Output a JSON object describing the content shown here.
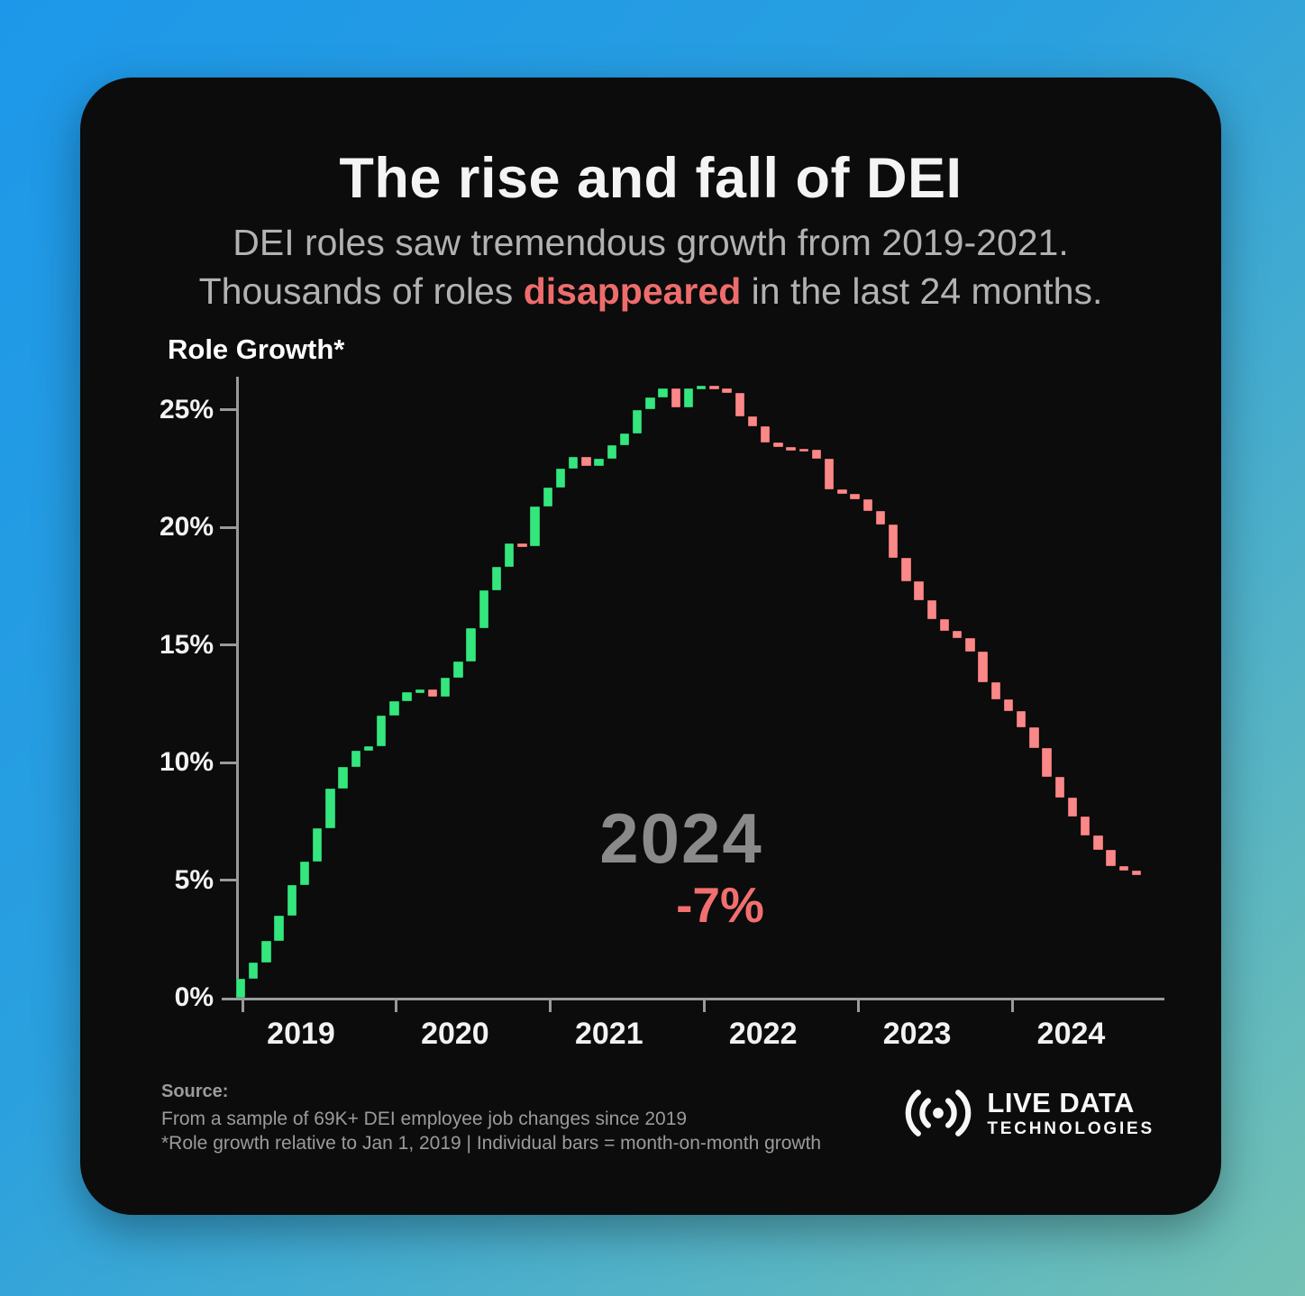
{
  "header": {
    "title": "The rise and fall of DEI",
    "subtitle_line1": "DEI roles saw tremendous growth from 2019-2021.",
    "subtitle_line2_prefix": "Thousands of roles ",
    "subtitle_line2_highlight": "disappeared",
    "subtitle_line2_suffix": " in the last 24 months."
  },
  "chart_data": {
    "type": "bar",
    "subtype": "waterfall",
    "axis_title": "Role Growth*",
    "ylabel": "Role Growth*",
    "xlabel": "",
    "ylim": [
      0,
      26.5
    ],
    "grid": false,
    "y_tick_values": [
      0,
      5,
      10,
      15,
      20,
      25
    ],
    "y_tick_labels": [
      "0%",
      "5%",
      "10%",
      "15%",
      "20%",
      "25%"
    ],
    "x_tick_labels": [
      "2019",
      "2020",
      "2021",
      "2022",
      "2023",
      "2024"
    ],
    "months": [
      "Jan 2019",
      "Feb 2019",
      "Mar 2019",
      "Apr 2019",
      "May 2019",
      "Jun 2019",
      "Jul 2019",
      "Aug 2019",
      "Sep 2019",
      "Oct 2019",
      "Nov 2019",
      "Dec 2019",
      "Jan 2020",
      "Feb 2020",
      "Mar 2020",
      "Apr 2020",
      "May 2020",
      "Jun 2020",
      "Jul 2020",
      "Aug 2020",
      "Sep 2020",
      "Oct 2020",
      "Nov 2020",
      "Dec 2020",
      "Jan 2021",
      "Feb 2021",
      "Mar 2021",
      "Apr 2021",
      "May 2021",
      "Jun 2021",
      "Jul 2021",
      "Aug 2021",
      "Sep 2021",
      "Oct 2021",
      "Nov 2021",
      "Dec 2021",
      "Jan 2022",
      "Feb 2022",
      "Mar 2022",
      "Apr 2022",
      "May 2022",
      "Jun 2022",
      "Jul 2022",
      "Aug 2022",
      "Sep 2022",
      "Oct 2022",
      "Nov 2022",
      "Dec 2022",
      "Jan 2023",
      "Feb 2023",
      "Mar 2023",
      "Apr 2023",
      "May 2023",
      "Jun 2023",
      "Jul 2023",
      "Aug 2023",
      "Sep 2023",
      "Oct 2023",
      "Nov 2023",
      "Dec 2023",
      "Jan 2024",
      "Feb 2024",
      "Mar 2024",
      "Apr 2024",
      "May 2024",
      "Jun 2024",
      "Jul 2024",
      "Aug 2024",
      "Sep 2024",
      "Oct 2024",
      "Nov 2024"
    ],
    "cumulative_role_growth_pct": [
      0.8,
      1.5,
      2.4,
      3.5,
      4.8,
      5.8,
      7.2,
      8.9,
      9.8,
      10.5,
      10.7,
      12.0,
      12.6,
      13.0,
      13.1,
      12.8,
      13.6,
      14.3,
      15.7,
      17.3,
      18.3,
      19.3,
      19.2,
      20.9,
      21.7,
      22.5,
      23.0,
      22.6,
      22.9,
      23.5,
      24.0,
      25.0,
      25.5,
      25.9,
      25.1,
      25.9,
      26.0,
      25.9,
      25.7,
      24.7,
      24.3,
      23.6,
      23.4,
      23.35,
      23.3,
      22.9,
      21.6,
      21.4,
      21.2,
      20.7,
      20.1,
      18.7,
      17.7,
      16.9,
      16.1,
      15.6,
      15.3,
      14.7,
      13.4,
      12.7,
      12.2,
      11.5,
      10.6,
      9.4,
      8.5,
      7.7,
      6.9,
      6.3,
      5.6,
      5.4,
      5.2
    ],
    "bar_colors": {
      "positive": "#35e67e",
      "negative": "#f98989"
    },
    "legend_position": "none",
    "annotation": {
      "year": "2024",
      "delta": "-7%"
    }
  },
  "footer": {
    "source_label": "Source:",
    "source_line1": "From a sample of 69K+ DEI employee job changes since 2019",
    "source_line2": "*Role growth relative to Jan 1, 2019 | Individual bars = month-on-month growth",
    "logo_line1": "LIVE DATA",
    "logo_line2": "TECHNOLOGIES",
    "logo_icon": "radio-waves-icon"
  }
}
